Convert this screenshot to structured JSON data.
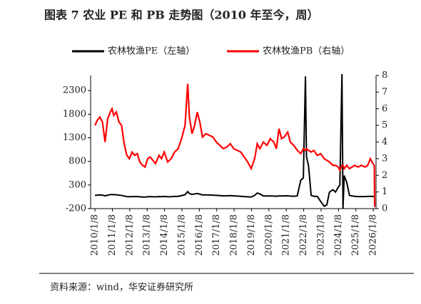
{
  "chart_data": {
    "type": "line",
    "title": "图表 7 农业 PE 和 PB 走势图（2010 年至今，周）",
    "source": "资料来源：wind，华安证券研究所",
    "x": [
      2010.02,
      2010.15,
      2010.3,
      2010.45,
      2010.6,
      2010.75,
      2010.9,
      2011.0,
      2011.1,
      2011.25,
      2011.4,
      2011.55,
      2011.7,
      2011.85,
      2012.0,
      2012.15,
      2012.3,
      2012.45,
      2012.6,
      2012.75,
      2012.9,
      2013.05,
      2013.2,
      2013.35,
      2013.5,
      2013.7,
      2013.85,
      2014.0,
      2014.2,
      2014.4,
      2014.6,
      2014.8,
      2015.0,
      2015.2,
      2015.35,
      2015.45,
      2015.6,
      2015.75,
      2015.9,
      2016.05,
      2016.2,
      2016.4,
      2016.6,
      2016.8,
      2017.0,
      2017.2,
      2017.4,
      2017.6,
      2017.8,
      2018.0,
      2018.2,
      2018.4,
      2018.6,
      2018.8,
      2019.0,
      2019.2,
      2019.35,
      2019.5,
      2019.7,
      2019.9,
      2020.1,
      2020.3,
      2020.45,
      2020.6,
      2020.75,
      2020.9,
      2021.1,
      2021.25,
      2021.45,
      2021.65,
      2021.85,
      2022.0,
      2022.12,
      2022.18,
      2022.3,
      2022.45,
      2022.6,
      2022.8,
      2023.0,
      2023.2,
      2023.35,
      2023.5,
      2023.7,
      2023.85,
      2024.0,
      2024.1,
      2024.22,
      2024.28,
      2024.35,
      2024.5,
      2024.65,
      2024.8,
      2024.95,
      2025.15,
      2025.35,
      2025.55,
      2025.7,
      2025.85,
      2026.0,
      2026.08,
      2026.1
    ],
    "series": [
      {
        "name": "农林牧渔PE（左轴）",
        "color": "#000000",
        "axis": "y",
        "values": [
          80,
          85,
          90,
          85,
          70,
          85,
          95,
          100,
          95,
          95,
          85,
          80,
          65,
          55,
          50,
          55,
          55,
          55,
          50,
          45,
          45,
          50,
          55,
          50,
          48,
          55,
          52,
          58,
          50,
          52,
          58,
          60,
          75,
          95,
          160,
          120,
          100,
          110,
          120,
          105,
          90,
          90,
          88,
          85,
          80,
          75,
          70,
          72,
          75,
          70,
          65,
          60,
          55,
          50,
          45,
          80,
          130,
          110,
          70,
          65,
          70,
          65,
          62,
          70,
          68,
          70,
          72,
          65,
          60,
          70,
          400,
          450,
          2600,
          900,
          700,
          80,
          60,
          60,
          -50,
          -150,
          -120,
          150,
          200,
          150,
          250,
          300,
          2650,
          -200,
          500,
          350,
          80,
          70,
          60,
          55,
          55,
          55,
          58,
          60,
          58,
          55,
          50
        ]
      },
      {
        "name": "农林牧渔PB（右轴）",
        "color": "#ff0000",
        "axis": "y2",
        "values": [
          5.0,
          5.3,
          5.5,
          5.2,
          4.0,
          5.4,
          5.8,
          6.0,
          5.6,
          5.8,
          5.2,
          5.0,
          3.9,
          3.2,
          3.0,
          3.4,
          3.2,
          3.3,
          2.8,
          2.6,
          2.5,
          3.0,
          3.1,
          2.9,
          2.7,
          3.2,
          3.0,
          3.4,
          2.8,
          3.0,
          3.4,
          3.6,
          4.2,
          5.0,
          7.5,
          5.5,
          4.5,
          5.0,
          5.8,
          5.2,
          4.3,
          4.5,
          4.4,
          4.3,
          4.0,
          3.8,
          3.6,
          3.7,
          3.9,
          3.6,
          3.5,
          3.4,
          3.1,
          2.8,
          2.4,
          3.0,
          3.9,
          3.6,
          4.0,
          3.8,
          4.2,
          4.0,
          3.6,
          4.8,
          4.2,
          4.3,
          4.6,
          4.0,
          3.8,
          3.5,
          3.3,
          3.6,
          3.5,
          3.6,
          3.5,
          3.4,
          3.5,
          3.2,
          3.3,
          3.0,
          2.9,
          2.8,
          2.6,
          2.6,
          2.5,
          2.3,
          2.6,
          2.6,
          2.4,
          2.6,
          2.4,
          2.5,
          2.6,
          2.5,
          2.6,
          2.5,
          2.6,
          3.0,
          2.7,
          2.6,
          0.1
        ]
      }
    ],
    "xlim": [
      2009.77,
      2026.18
    ],
    "xticks": [
      {
        "value": 2010.02,
        "label": "2010/1/8"
      },
      {
        "value": 2011.02,
        "label": "2011/1/8"
      },
      {
        "value": 2012.02,
        "label": "2012/1/8"
      },
      {
        "value": 2013.02,
        "label": "2013/1/8"
      },
      {
        "value": 2014.02,
        "label": "2014/1/8"
      },
      {
        "value": 2015.02,
        "label": "2015/1/8"
      },
      {
        "value": 2016.02,
        "label": "2016/1/8"
      },
      {
        "value": 2017.02,
        "label": "2017/1/8"
      },
      {
        "value": 2018.02,
        "label": "2018/1/8"
      },
      {
        "value": 2019.02,
        "label": "2019/1/8"
      },
      {
        "value": 2020.02,
        "label": "2020/1/8"
      },
      {
        "value": 2021.02,
        "label": "2021/1/8"
      },
      {
        "value": 2022.02,
        "label": "2022/1/8"
      },
      {
        "value": 2023.02,
        "label": "2023/1/8"
      },
      {
        "value": 2024.02,
        "label": "2024/1/8"
      },
      {
        "value": 2025.02,
        "label": "2025/1/8"
      },
      {
        "value": 2026.02,
        "label": "2026/1/8"
      }
    ],
    "ylim": [
      -200,
      2620
    ],
    "yticks": [
      -200,
      300,
      800,
      1300,
      1800,
      2300
    ],
    "y2lim": [
      0,
      8
    ],
    "y2ticks": [
      0,
      1,
      2,
      3,
      4,
      5,
      6,
      7,
      8
    ],
    "legend": "top"
  }
}
